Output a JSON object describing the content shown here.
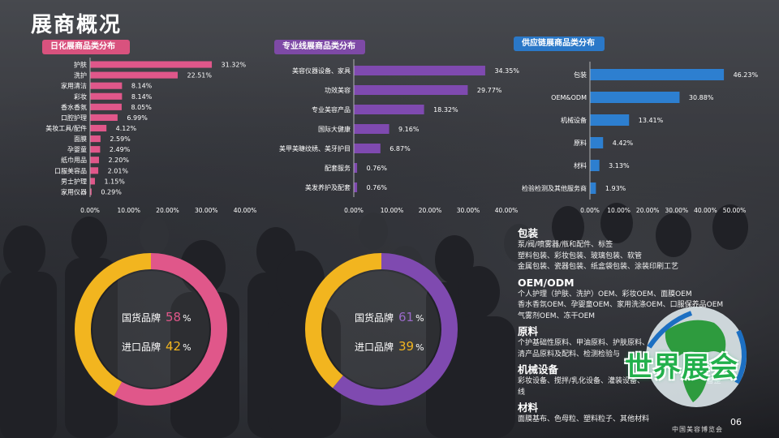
{
  "page": {
    "title": "展商概况",
    "page_number": "06",
    "brand_text": "中国美容博览会",
    "logo_text": "世界展会"
  },
  "chart_data": [
    {
      "type": "bar",
      "orientation": "horizontal",
      "title": "日化展商品类分布",
      "color": "#e0578a",
      "categories": [
        "护肤",
        "洗护",
        "家用清洁",
        "彩妆",
        "香水香氛",
        "口腔护理",
        "美妆工具/配件",
        "面膜",
        "孕婴童",
        "纸巾用品",
        "口服美容品",
        "男士护理",
        "家用仪器"
      ],
      "values": [
        31.32,
        22.51,
        8.14,
        8.14,
        8.05,
        6.99,
        4.12,
        2.59,
        2.49,
        2.2,
        2.01,
        1.15,
        0.29
      ],
      "labels": [
        "31.32%",
        "22.51%",
        "8.14%",
        "8.14%",
        "8.05%",
        "6.99%",
        "4.12%",
        "2.59%",
        "2.49%",
        "2.20%",
        "2.01%",
        "1.15%",
        "0.29%"
      ],
      "xlim": [
        0,
        40
      ],
      "ticks": [
        "0.00%",
        "10.00%",
        "20.00%",
        "30.00%",
        "40.00%"
      ]
    },
    {
      "type": "bar",
      "orientation": "horizontal",
      "title": "专业线展商品类分布",
      "color": "#7f4ab0",
      "categories": [
        "美容仪器设备、家具",
        "功效美容",
        "专业美容产品",
        "国际大健康",
        "美甲美睫纹绣、美牙护目",
        "配套服务",
        "美发养护及配套"
      ],
      "values": [
        34.35,
        29.77,
        18.32,
        9.16,
        6.87,
        0.76,
        0.76
      ],
      "labels": [
        "34.35%",
        "29.77%",
        "18.32%",
        "9.16%",
        "6.87%",
        "0.76%",
        "0.76%"
      ],
      "xlim": [
        0,
        40
      ],
      "ticks": [
        "0.00%",
        "10.00%",
        "20.00%",
        "30.00%",
        "40.00%"
      ]
    },
    {
      "type": "bar",
      "orientation": "horizontal",
      "title": "供应链展商品类分布",
      "color": "#2d7fd0",
      "categories": [
        "包装",
        "OEM&ODM",
        "机械设备",
        "原料",
        "材料",
        "检验检测及其他服务商"
      ],
      "values": [
        46.23,
        30.88,
        13.41,
        4.42,
        3.13,
        1.93
      ],
      "labels": [
        "46.23%",
        "30.88%",
        "13.41%",
        "4.42%",
        "3.13%",
        "1.93%"
      ],
      "xlim": [
        0,
        50
      ],
      "ticks": [
        "0.00%",
        "10.00%",
        "20.00%",
        "30.00%",
        "40.00%",
        "50.00%"
      ]
    },
    {
      "type": "pie",
      "style": "donut",
      "categories": [
        "国货品牌",
        "进口品牌"
      ],
      "values": [
        58,
        42
      ],
      "colors": [
        "#e0578a",
        "#f2b51f"
      ],
      "label_colors": [
        "#e0578a",
        "#f2b51f"
      ]
    },
    {
      "type": "pie",
      "style": "donut",
      "categories": [
        "国货品牌",
        "进口品牌"
      ],
      "values": [
        61,
        39
      ],
      "colors": [
        "#7f4ab0",
        "#f2b51f"
      ],
      "label_colors": [
        "#9a6ac8",
        "#f2b51f"
      ]
    }
  ],
  "supply_details": [
    {
      "heading": "包装",
      "lines": [
        "泵/阀/喷雾器/瓶和配件、标签",
        "塑料包装、彩妆包装、玻璃包装、软管",
        "金属包装、瓷器包装、纸盒袋包装、涂装印刷工艺"
      ]
    },
    {
      "heading": "OEM/ODM",
      "lines": [
        "个人护理（护肤、洗护）OEM、彩妆OEM、面膜OEM",
        "香水香氛OEM、孕婴童OEM、家用洗涤OEM、口服保养品OEM",
        "气雾剂OEM、冻干OEM"
      ]
    },
    {
      "heading": "原料",
      "lines": [
        "个护基础性原料、甲油原料、护肤原料、　　　　　　　　料、家",
        "清产品原料及配料、检测检验与"
      ]
    },
    {
      "heading": "机械设备",
      "lines": [
        "彩妆设备、搅拌/乳化设备、灌装设备、　　　　　　　　设备整",
        "线"
      ]
    },
    {
      "heading": "材料",
      "lines": [
        "面膜基布、色母粒、塑料粒子、其他材料"
      ]
    }
  ]
}
